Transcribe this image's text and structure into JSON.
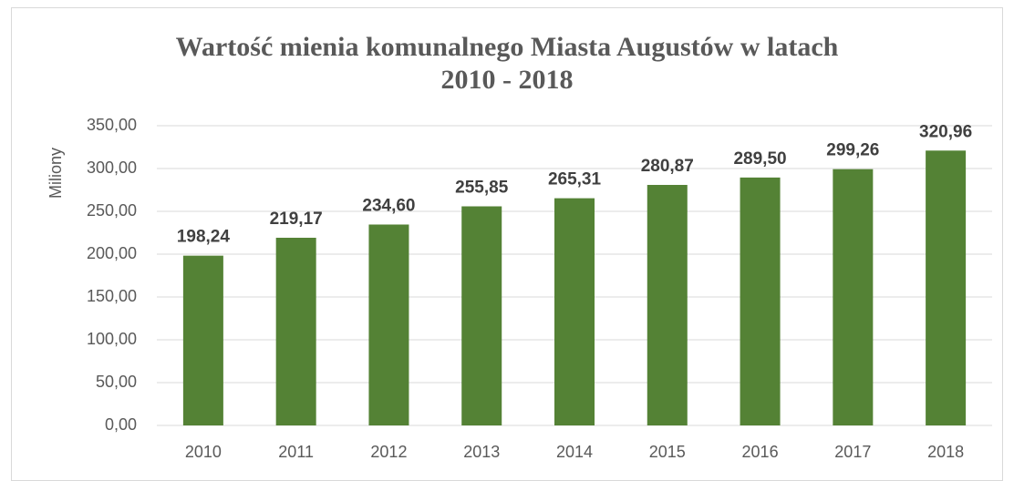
{
  "chart_data": {
    "type": "bar",
    "title": "Wartość mienia komunalnego Miasta Augustów w latach 2010 - 2018",
    "y_label": "Miliony",
    "categories": [
      "2010",
      "2011",
      "2012",
      "2013",
      "2014",
      "2015",
      "2016",
      "2017",
      "2018"
    ],
    "values": [
      198.24,
      219.17,
      234.6,
      255.85,
      265.31,
      280.87,
      289.5,
      299.26,
      320.96
    ],
    "value_labels": [
      "198,24",
      "219,17",
      "234,60",
      "255,85",
      "265,31",
      "280,87",
      "289,50",
      "299,26",
      "320,96"
    ],
    "color": "#548235",
    "ylim": [
      0,
      350
    ],
    "yticks": [
      {
        "value": 0,
        "label": "0,00"
      },
      {
        "value": 50,
        "label": "50,00"
      },
      {
        "value": 100,
        "label": "100,00"
      },
      {
        "value": 150,
        "label": "150,00"
      },
      {
        "value": 200,
        "label": "200,00"
      },
      {
        "value": 250,
        "label": "250,00"
      },
      {
        "value": 300,
        "label": "300,00"
      },
      {
        "value": 350,
        "label": "350,00"
      }
    ],
    "grid": true
  }
}
